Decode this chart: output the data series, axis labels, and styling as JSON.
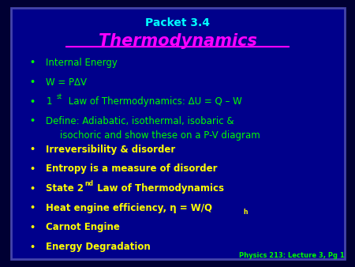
{
  "bg_outer": "#000033",
  "bg_inner": "#00008B",
  "border_color": "#4444AA",
  "packet_text": "Packet 3.4",
  "packet_color": "#00FFFF",
  "title_text": "Thermodynamics",
  "title_color": "#FF00FF",
  "bullet_color_green": "#00FF00",
  "bullet_color_yellow": "#FFFF00",
  "footer_text": "Physics 213: Lecture 3, Pg 1",
  "footer_color": "#00FF00",
  "bullet_items": [
    {
      "text": "Internal Energy",
      "color": "#00FF00",
      "bold": false,
      "superscript": null,
      "second_line": null
    },
    {
      "text": "W = PΔV",
      "color": "#00FF00",
      "bold": false,
      "superscript": null,
      "second_line": null
    },
    {
      "text": "1 Law of Thermodynamics: ΔU = Q – W",
      "color": "#00FF00",
      "bold": false,
      "superscript": "st",
      "second_line": null
    },
    {
      "text": "Define: Adiabatic, isothermal, isobaric &",
      "color": "#00FF00",
      "bold": false,
      "superscript": null,
      "second_line": "isochoric and show these on a P-V diagram"
    },
    {
      "text": "Irreversibility & disorder",
      "color": "#FFFF00",
      "bold": true,
      "superscript": null,
      "second_line": null
    },
    {
      "text": "Entropy is a measure of disorder",
      "color": "#FFFF00",
      "bold": true,
      "superscript": null,
      "second_line": null
    },
    {
      "text": "State 2 Law of Thermodynamics",
      "color": "#FFFF00",
      "bold": true,
      "superscript": "nd",
      "second_line": null
    },
    {
      "text": "Heat engine efficiency, η = W/Q",
      "color": "#FFFF00",
      "bold": true,
      "superscript": null,
      "second_line": null,
      "subscript": "h"
    },
    {
      "text": "Carnot Engine",
      "color": "#FFFF00",
      "bold": true,
      "superscript": null,
      "second_line": null
    },
    {
      "text": "Energy Degradation",
      "color": "#FFFF00",
      "bold": true,
      "superscript": null,
      "second_line": null
    }
  ]
}
